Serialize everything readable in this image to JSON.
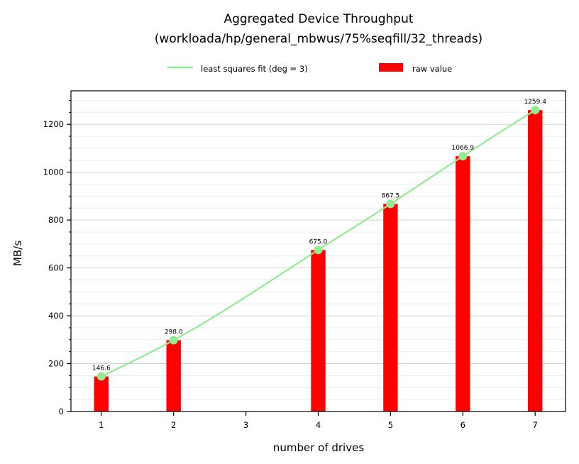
{
  "chart_data": {
    "type": "bar",
    "title_lines": [
      "Aggregated Device Throughput",
      "(workloada/hp/general_mbwus/75%seqfill/32_threads)"
    ],
    "xlabel": "number of drives",
    "ylabel": "MB/s",
    "x_ticks": [
      1,
      2,
      3,
      4,
      5,
      6,
      7
    ],
    "x_range": [
      0.58,
      7.42
    ],
    "ylim": [
      0,
      1340
    ],
    "y_ticks": [
      0,
      200,
      400,
      600,
      800,
      1000,
      1200
    ],
    "y_minor_step": 50,
    "grid": true,
    "legend_position": "top-center",
    "bar_series": {
      "name": "raw value",
      "color": "#ff0000",
      "x": [
        1,
        2,
        4,
        5,
        6,
        7
      ],
      "values": [
        146.6,
        298.0,
        675.0,
        867.5,
        1066.9,
        1259.4
      ],
      "labels": [
        "146.6",
        "298.0",
        "675.0",
        "867.5",
        "1066.9",
        "1259.4"
      ]
    },
    "fit_series": {
      "name": "least squares fit (deg = 3)",
      "color": "#90ee90",
      "x": [
        1,
        2,
        4,
        5,
        6,
        7
      ],
      "values": [
        146.6,
        298.0,
        675.0,
        867.5,
        1066.9,
        1259.4
      ]
    }
  }
}
